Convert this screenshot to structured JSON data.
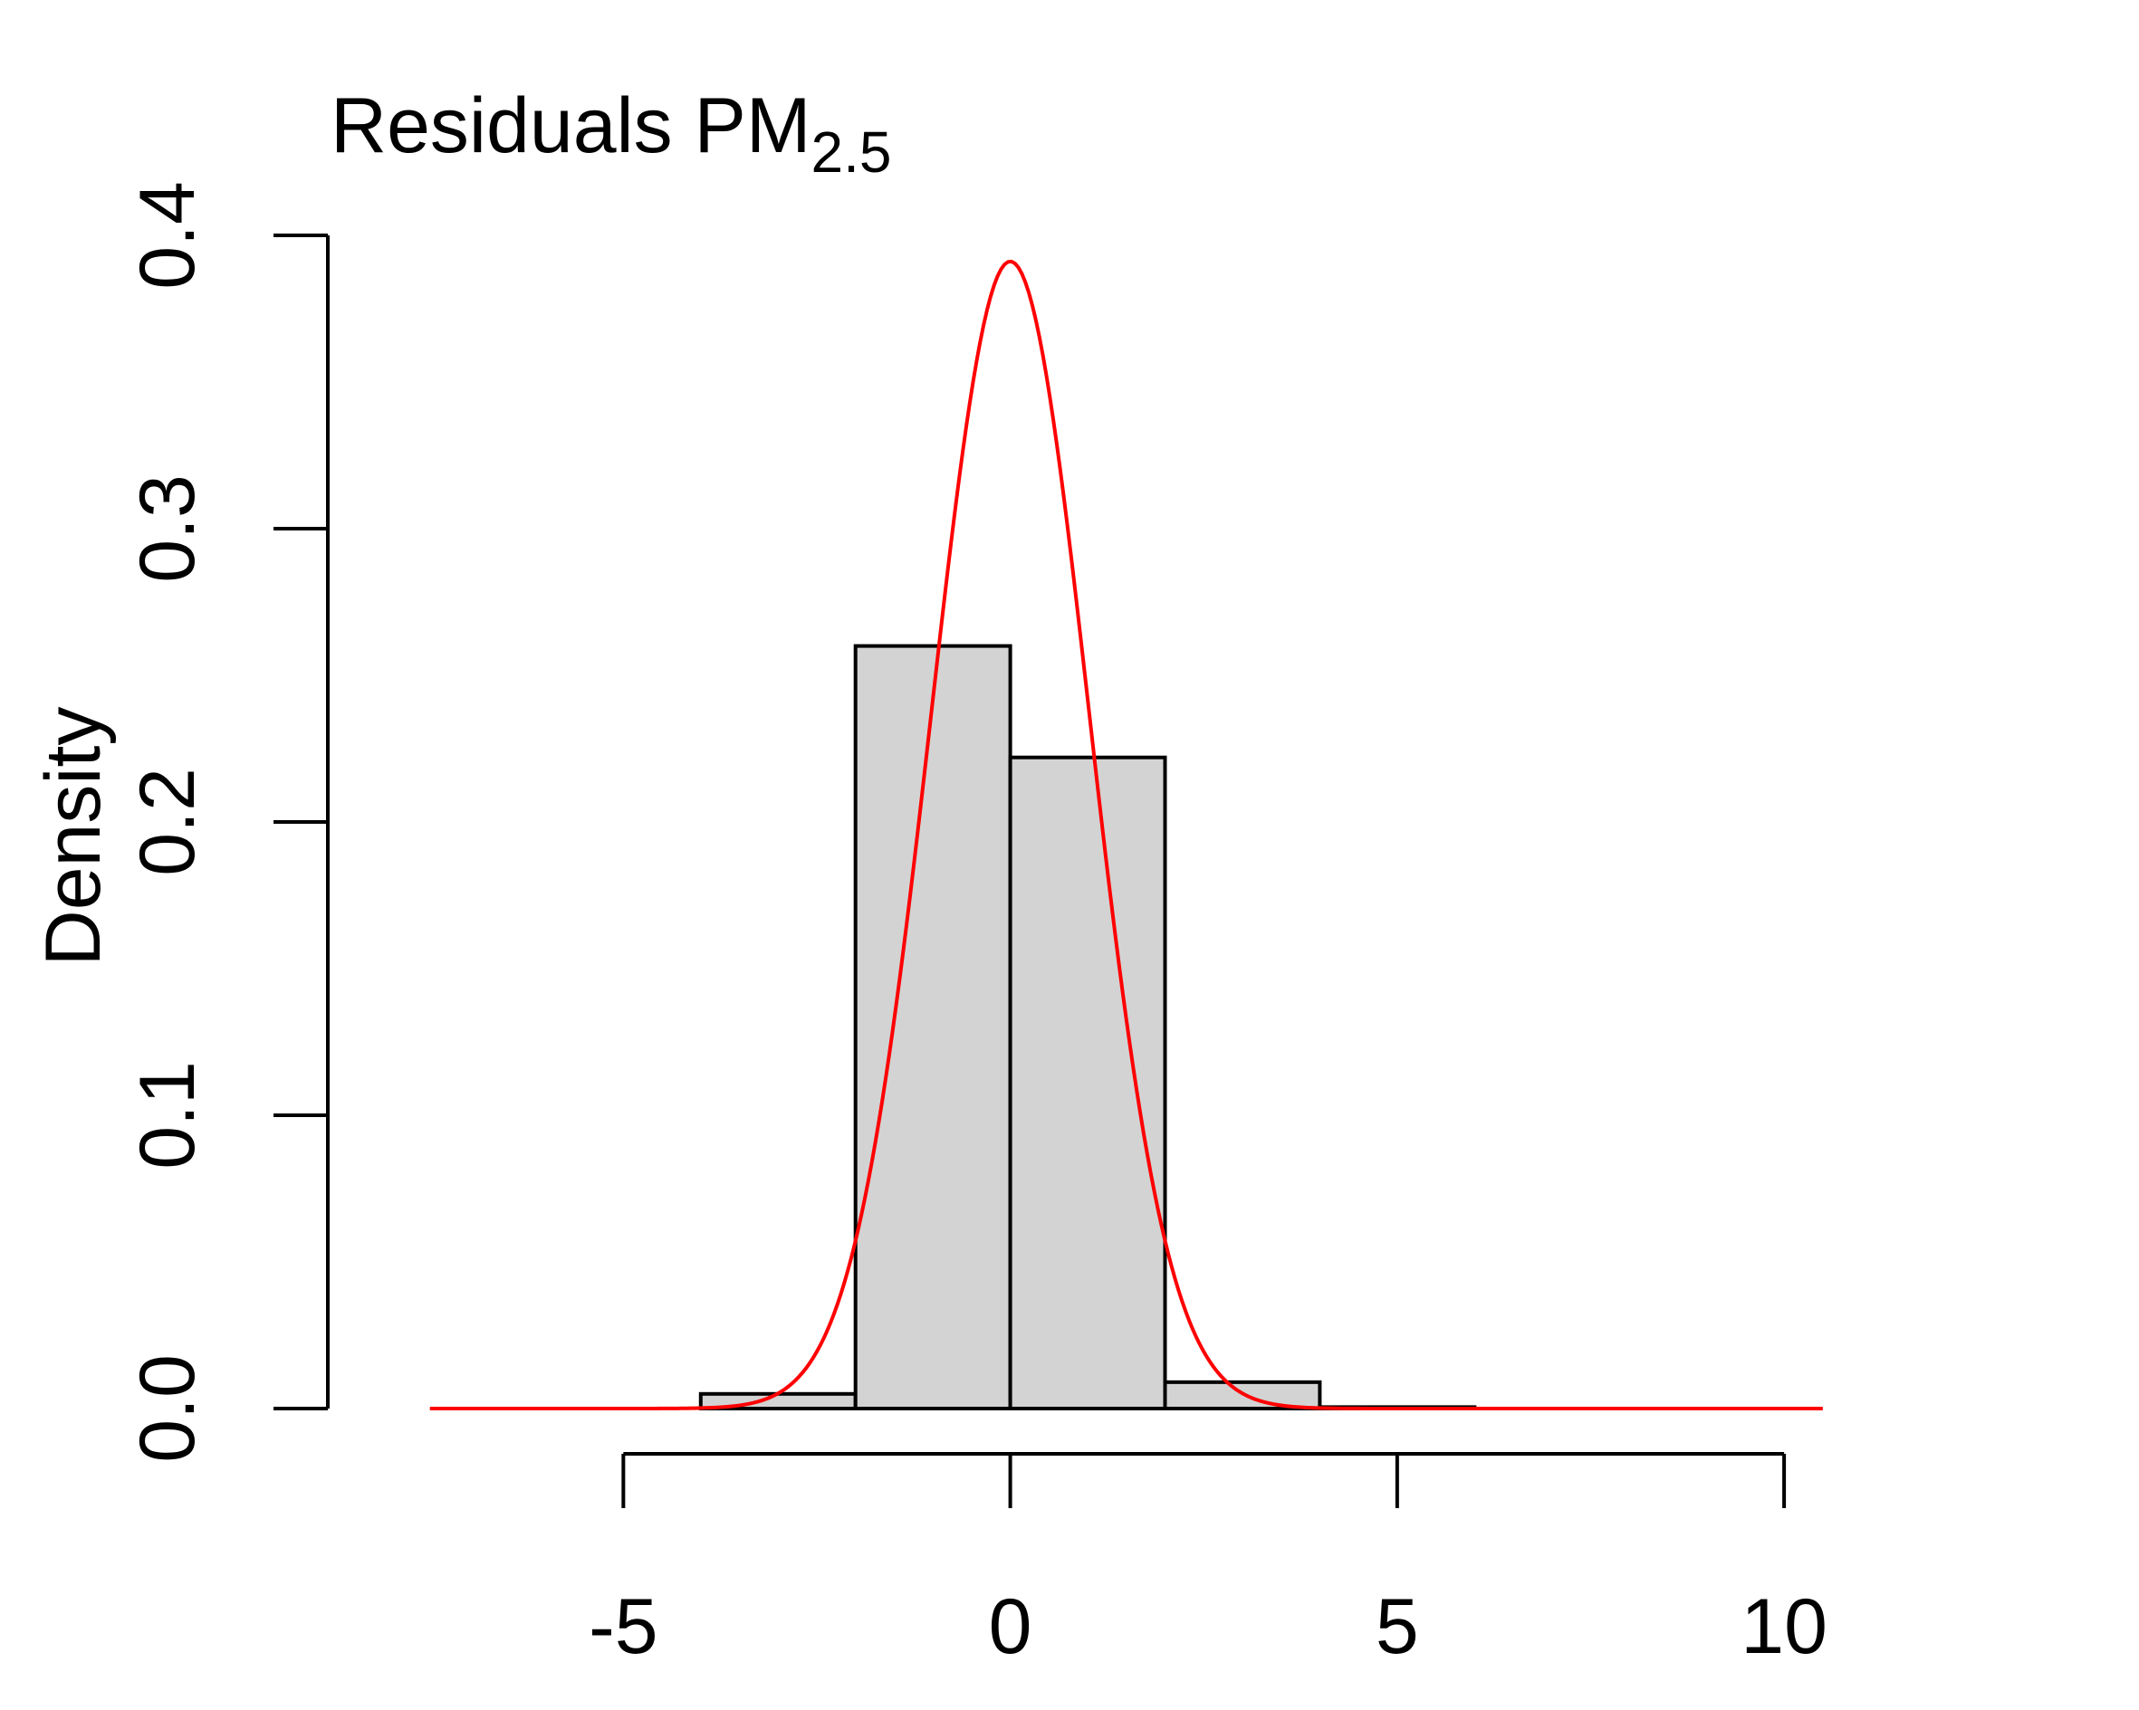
{
  "chart_data": {
    "type": "bar",
    "title": "Residuals PM",
    "title_subscript": "2.5",
    "xlabel": "",
    "ylabel": "Density",
    "bins": [
      {
        "x0": -8,
        "x1": -6,
        "density": 0.0
      },
      {
        "x0": -6,
        "x1": -4,
        "density": 0.0
      },
      {
        "x0": -4,
        "x1": -2,
        "density": 0.005
      },
      {
        "x0": -2,
        "x1": 0,
        "density": 0.26
      },
      {
        "x0": 0,
        "x1": 2,
        "density": 0.222
      },
      {
        "x0": 2,
        "x1": 4,
        "density": 0.009
      },
      {
        "x0": 4,
        "x1": 6,
        "density": 0.0005
      },
      {
        "x0": 6,
        "x1": 8,
        "density": 0.0
      },
      {
        "x0": 8,
        "x1": 10,
        "density": 0.0
      },
      {
        "x0": 10,
        "x1": 12,
        "density": 0.0
      }
    ],
    "series": [
      {
        "type": "line",
        "color": "#ff0000",
        "distribution": "normal",
        "mean": 0,
        "sd": 1.02,
        "x_range": [
          -7.5,
          10.5
        ]
      }
    ],
    "xlim": [
      -8,
      12
    ],
    "ylim": [
      0,
      0.4
    ],
    "x_ticks": [
      -5,
      0,
      5,
      10
    ],
    "x_tick_labels": [
      "-5",
      "0",
      "5",
      "10"
    ],
    "y_ticks": [
      0.0,
      0.1,
      0.2,
      0.3,
      0.4
    ],
    "y_tick_labels": [
      "0.0",
      "0.1",
      "0.2",
      "0.3",
      "0.4"
    ],
    "bar_fill": "#d3d3d3",
    "bar_stroke": "#000000",
    "grid": false,
    "legend": "none"
  }
}
